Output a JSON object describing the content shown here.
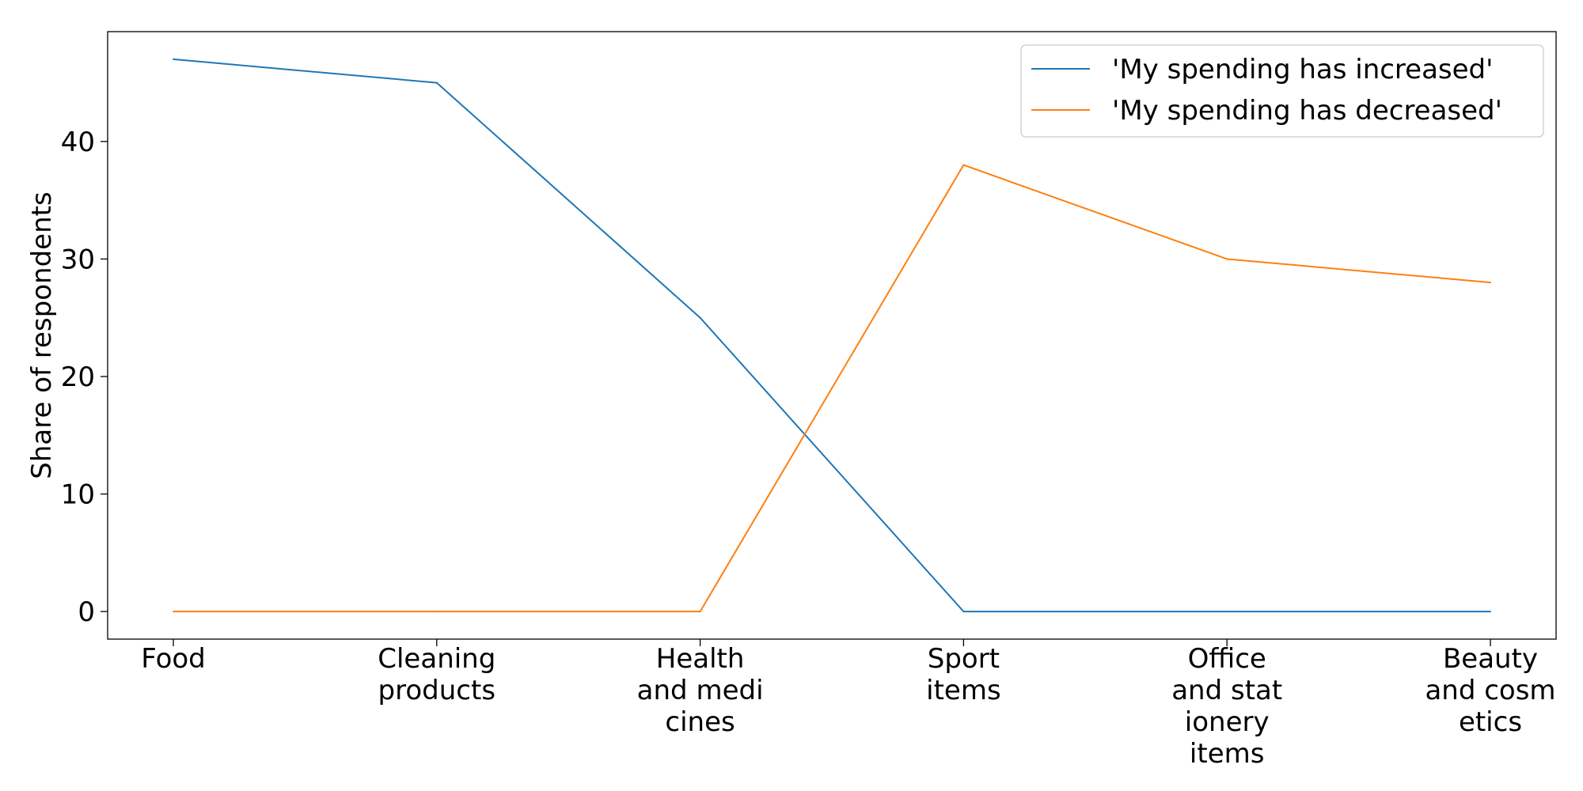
{
  "chart_data": {
    "type": "line",
    "title": "",
    "xlabel": "",
    "ylabel": "Share of respondents",
    "categories": [
      [
        "Food"
      ],
      [
        "Cleaning",
        "products"
      ],
      [
        "Health",
        "and medi",
        "cines"
      ],
      [
        "Sport",
        "items"
      ],
      [
        "Office",
        "and stat",
        "ionery",
        "items"
      ],
      [
        "Beauty",
        "and cosm",
        "etics"
      ]
    ],
    "series": [
      {
        "name": "'My spending has increased'",
        "color": "#1f77b4",
        "values": [
          47,
          45,
          25,
          0,
          0,
          0
        ]
      },
      {
        "name": "'My spending has decreased'",
        "color": "#ff7f0e",
        "values": [
          0,
          0,
          0,
          38,
          30,
          28
        ]
      }
    ],
    "ylim": [
      -2.35,
      49.35
    ],
    "yticks": [
      0,
      10,
      20,
      30,
      40
    ],
    "grid": false,
    "legend_position": "top-right"
  }
}
